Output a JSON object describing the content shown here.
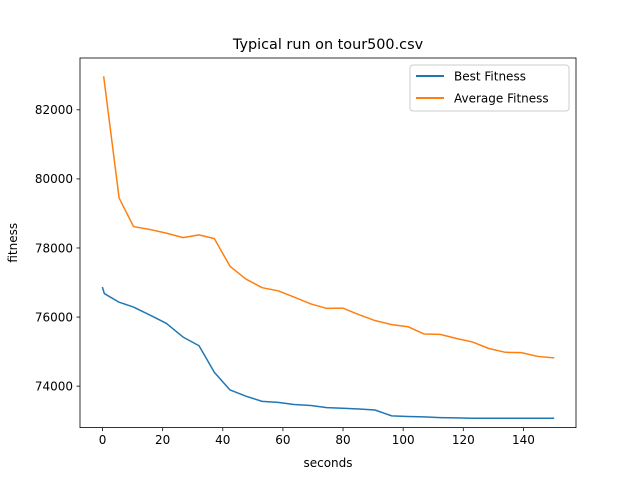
{
  "chart_data": {
    "type": "line",
    "title": "Typical run on tour500.csv",
    "xlabel": "seconds",
    "ylabel": "fitness",
    "xlim": [
      -7.5,
      157.5
    ],
    "ylim": [
      72800,
      83500
    ],
    "x_ticks": [
      0,
      20,
      40,
      60,
      80,
      100,
      120,
      140
    ],
    "x_tick_labels": [
      "0",
      "20",
      "40",
      "60",
      "80",
      "100",
      "120",
      "140"
    ],
    "y_ticks": [
      74000,
      76000,
      78000,
      80000,
      82000
    ],
    "y_tick_labels": [
      "74000",
      "76000",
      "78000",
      "80000",
      "82000"
    ],
    "grid": false,
    "legend_position": "top-right",
    "series": [
      {
        "name": "Best Fitness",
        "color": "#1f77b4",
        "x": [
          0,
          0.6,
          5.5,
          10.3,
          15.5,
          21.2,
          26.8,
          32.1,
          37.2,
          42.4,
          47.7,
          53.1,
          58.4,
          63.7,
          69.3,
          74.6,
          79.9,
          85.3,
          90.6,
          96.2,
          101.6,
          106.9,
          112.3,
          117.8,
          123.0,
          128.5,
          134.0,
          139.3,
          144.8,
          150.0
        ],
        "y": [
          76850,
          76680,
          76430,
          76290,
          76070,
          75820,
          75420,
          75170,
          74400,
          73890,
          73710,
          73560,
          73530,
          73470,
          73440,
          73380,
          73360,
          73340,
          73310,
          73140,
          73120,
          73110,
          73090,
          73080,
          73070,
          73070,
          73070,
          73070,
          73070,
          73070
        ]
      },
      {
        "name": "Average Fitness",
        "color": "#ff7f0e",
        "x": [
          0.4,
          5.5,
          10.3,
          15.5,
          21.2,
          26.8,
          32.1,
          37.2,
          42.4,
          47.7,
          53.1,
          58.4,
          63.7,
          69.3,
          74.6,
          79.9,
          85.3,
          90.6,
          96.2,
          101.6,
          106.9,
          112.3,
          117.8,
          123.0,
          128.5,
          134.0,
          139.3,
          144.8,
          150.0
        ],
        "y": [
          82950,
          79450,
          78620,
          78540,
          78430,
          78300,
          78380,
          78270,
          77470,
          77100,
          76850,
          76760,
          76580,
          76380,
          76250,
          76260,
          76070,
          75900,
          75780,
          75720,
          75510,
          75500,
          75380,
          75280,
          75090,
          74980,
          74970,
          74860,
          74820
        ]
      }
    ]
  }
}
